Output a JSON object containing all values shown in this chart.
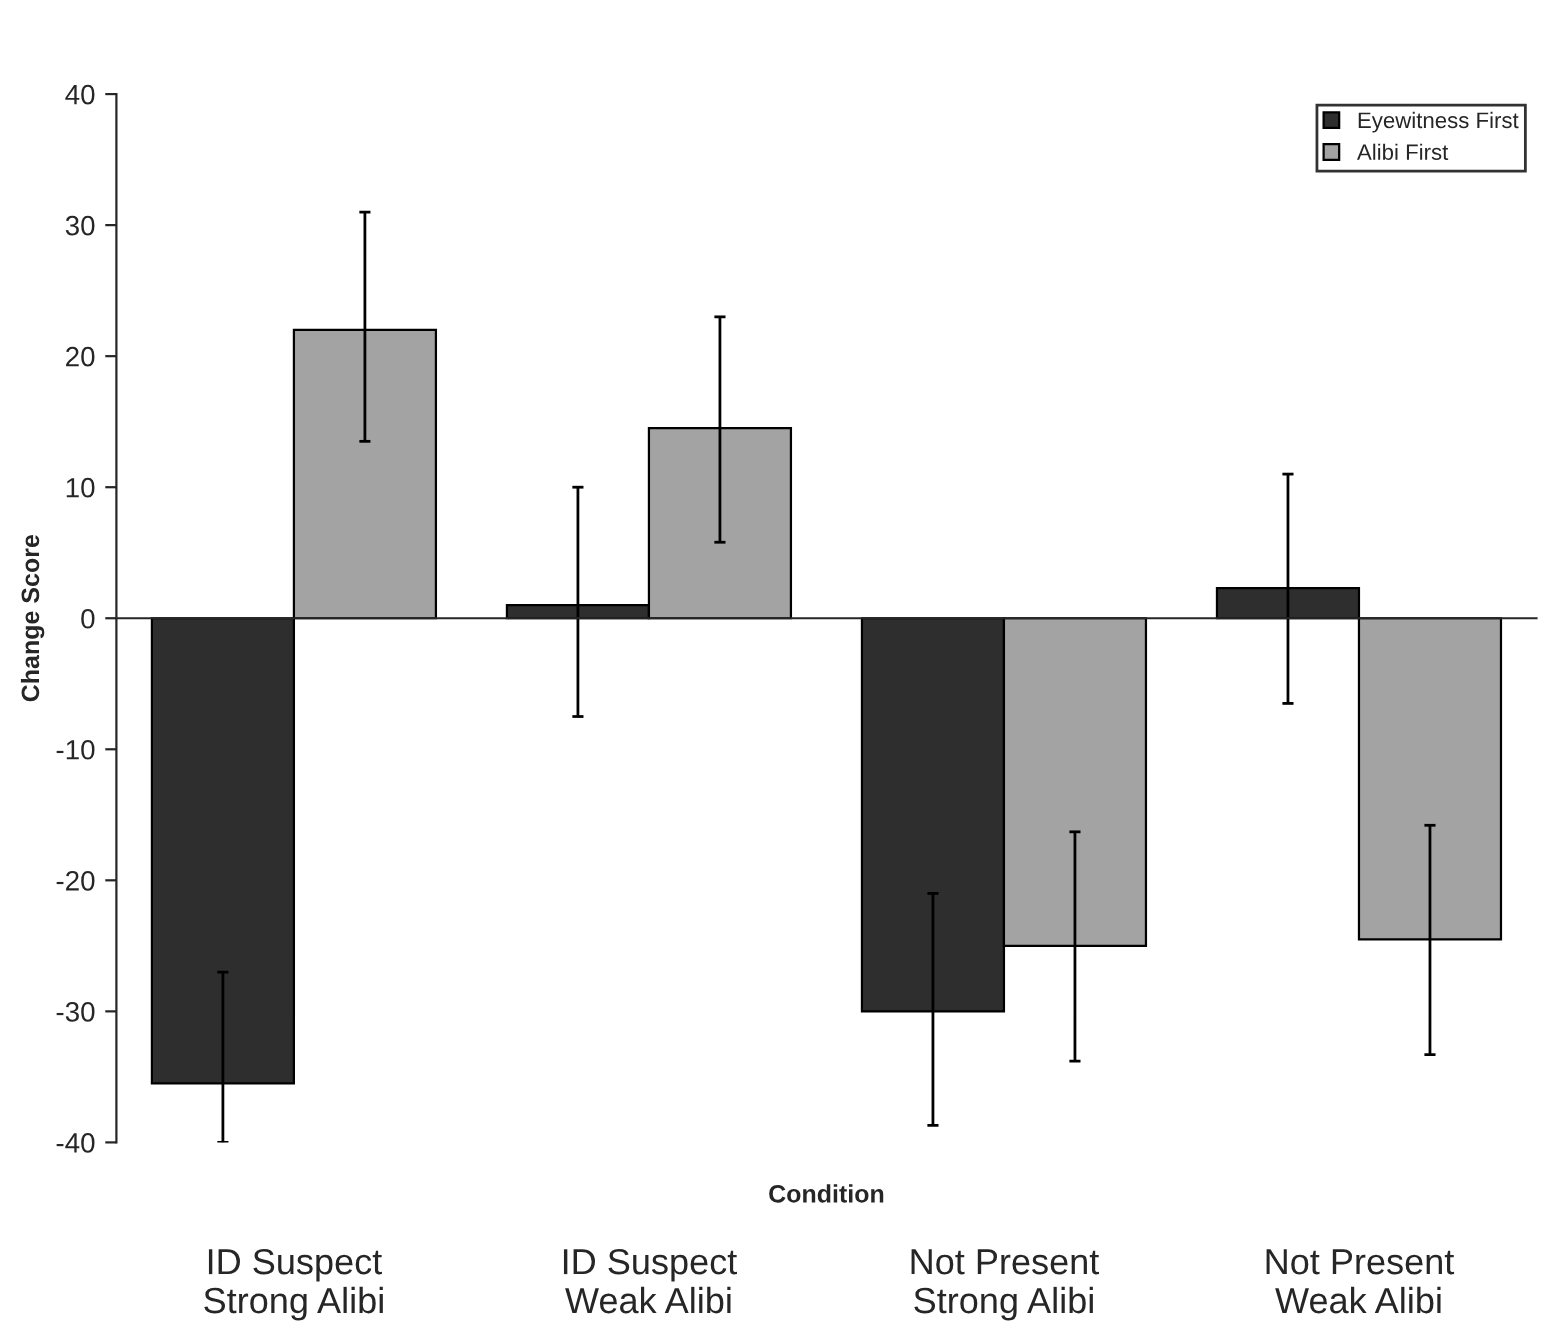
{
  "chart_data": {
    "type": "bar",
    "xlabel": "Condition",
    "ylabel": "Change Score",
    "categories": [
      "ID Suspect\nStrong Alibi",
      "ID Suspect\nWeak Alibi",
      "Not Present\nStrong Alibi",
      "Not Present\nWeak Alibi"
    ],
    "series": [
      {
        "name": "Eyewitness First",
        "color": "#2e2e2e",
        "values": [
          -35.5,
          1,
          -30,
          2.3
        ],
        "errors": [
          [
            -40,
            -27
          ],
          [
            -7.5,
            10
          ],
          [
            -38.7,
            -21
          ],
          [
            -6.5,
            11
          ]
        ]
      },
      {
        "name": "Alibi First",
        "color": "#a3a3a3",
        "values": [
          22,
          14.5,
          -25,
          -24.5
        ],
        "errors": [
          [
            13.5,
            31
          ],
          [
            5.8,
            23
          ],
          [
            -33.8,
            -16.3
          ],
          [
            -33.3,
            -15.8
          ]
        ]
      }
    ],
    "ylim": [
      -40,
      40
    ],
    "yticks": [
      -40,
      -30,
      -20,
      -10,
      0,
      10,
      20,
      30,
      40
    ],
    "legend": "top right"
  }
}
